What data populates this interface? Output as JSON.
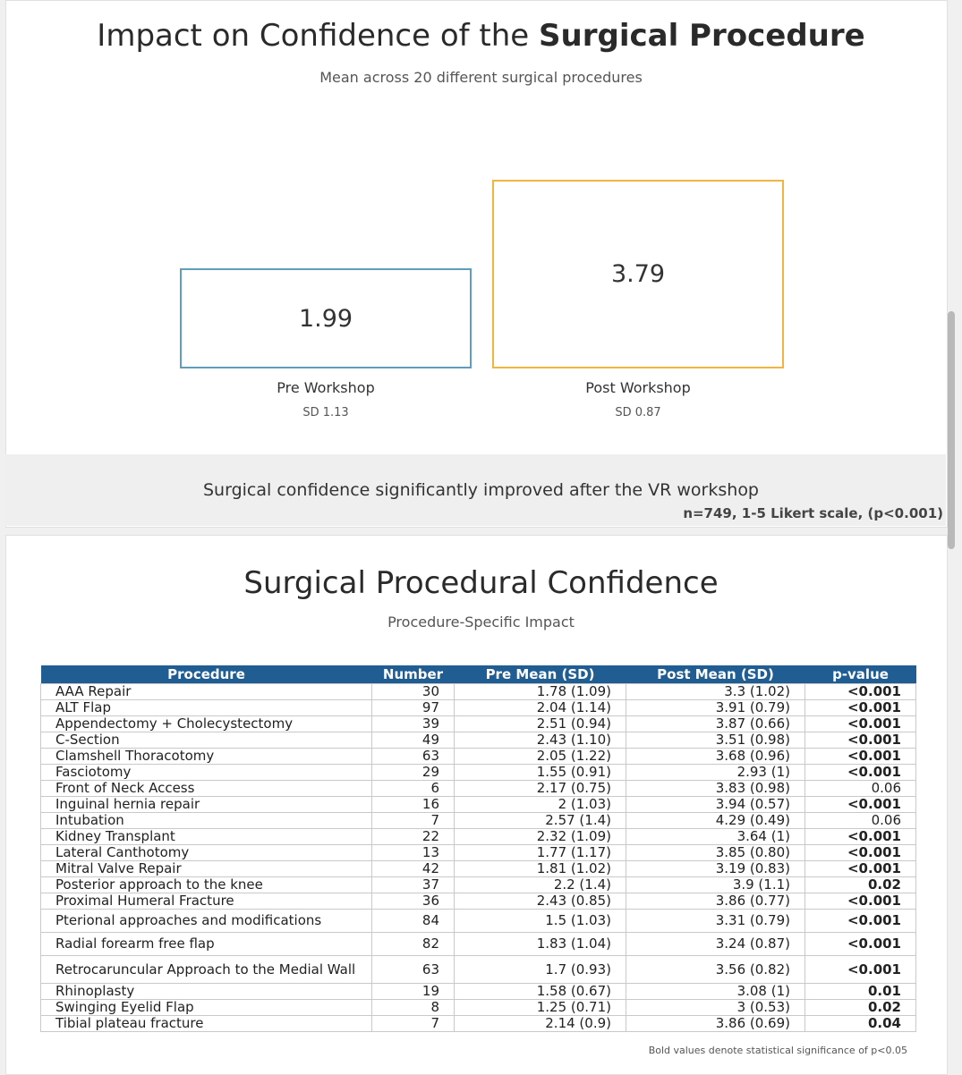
{
  "summary": {
    "title_prefix": "Impact on Confidence of the ",
    "title_bold": "Surgical Procedure",
    "subtitle": "Mean across 20 different surgical procedures",
    "pre": {
      "value": "1.99",
      "label": "Pre Workshop",
      "sd": "SD 1.13",
      "color": "#5f9db9"
    },
    "post": {
      "value": "3.79",
      "label": "Post Workshop",
      "sd": "SD 0.87",
      "color": "#f0b541"
    },
    "conclusion": "Surgical confidence significantly improved after the VR workshop",
    "note": "n=749, 1-5 Likert scale, (p<0.001)"
  },
  "procedures": {
    "title": "Surgical Procedural Confidence",
    "subtitle": "Procedure-Specific Impact",
    "header_color": "#1f5d92",
    "columns": [
      "Procedure",
      "Number",
      "Pre Mean (SD)",
      "Post Mean (SD)",
      "p-value"
    ],
    "rows": [
      {
        "procedure": "AAA Repair",
        "number": "30",
        "pre": "1.78 (1.09)",
        "post": "3.3 (1.02)",
        "p": "<0.001",
        "sig": true
      },
      {
        "procedure": "ALT Flap",
        "number": "97",
        "pre": "2.04 (1.14)",
        "post": "3.91 (0.79)",
        "p": "<0.001",
        "sig": true
      },
      {
        "procedure": "Appendectomy + Cholecystectomy",
        "number": "39",
        "pre": "2.51 (0.94)",
        "post": "3.87 (0.66)",
        "p": "<0.001",
        "sig": true
      },
      {
        "procedure": "C-Section",
        "number": "49",
        "pre": "2.43 (1.10)",
        "post": "3.51 (0.98)",
        "p": "<0.001",
        "sig": true
      },
      {
        "procedure": "Clamshell Thoracotomy",
        "number": "63",
        "pre": "2.05 (1.22)",
        "post": "3.68 (0.96)",
        "p": "<0.001",
        "sig": true
      },
      {
        "procedure": "Fasciotomy",
        "number": "29",
        "pre": "1.55 (0.91)",
        "post": "2.93 (1)",
        "p": "<0.001",
        "sig": true
      },
      {
        "procedure": "Front of Neck Access",
        "number": "6",
        "pre": "2.17 (0.75)",
        "post": "3.83 (0.98)",
        "p": "0.06",
        "sig": false
      },
      {
        "procedure": "Inguinal hernia repair",
        "number": "16",
        "pre": "2 (1.03)",
        "post": "3.94 (0.57)",
        "p": "<0.001",
        "sig": true
      },
      {
        "procedure": "Intubation",
        "number": "7",
        "pre": "2.57 (1.4)",
        "post": "4.29 (0.49)",
        "p": "0.06",
        "sig": false
      },
      {
        "procedure": "Kidney Transplant",
        "number": "22",
        "pre": "2.32 (1.09)",
        "post": "3.64 (1)",
        "p": "<0.001",
        "sig": true
      },
      {
        "procedure": "Lateral Canthotomy",
        "number": "13",
        "pre": "1.77 (1.17)",
        "post": "3.85 (0.80)",
        "p": "<0.001",
        "sig": true
      },
      {
        "procedure": "Mitral Valve Repair",
        "number": "42",
        "pre": "1.81 (1.02)",
        "post": "3.19 (0.83)",
        "p": "<0.001",
        "sig": true
      },
      {
        "procedure": "Posterior approach to the knee",
        "number": "37",
        "pre": "2.2 (1.4)",
        "post": "3.9 (1.1)",
        "p": "0.02",
        "sig": true
      },
      {
        "procedure": "Proximal Humeral Fracture",
        "number": "36",
        "pre": "2.43 (0.85)",
        "post": "3.86 (0.77)",
        "p": "<0.001",
        "sig": true
      },
      {
        "procedure": "Pterional approaches and modifications",
        "number": "84",
        "pre": "1.5 (1.03)",
        "post": "3.31 (0.79)",
        "p": "<0.001",
        "sig": true
      },
      {
        "procedure": "Radial forearm free flap",
        "number": "82",
        "pre": "1.83 (1.04)",
        "post": "3.24 (0.87)",
        "p": "<0.001",
        "sig": true
      },
      {
        "procedure": "Retrocaruncular Approach to the Medial Wall",
        "number": "63",
        "pre": "1.7 (0.93)",
        "post": "3.56 (0.82)",
        "p": "<0.001",
        "sig": true
      },
      {
        "procedure": "Rhinoplasty",
        "number": "19",
        "pre": "1.58 (0.67)",
        "post": "3.08 (1)",
        "p": "0.01",
        "sig": true
      },
      {
        "procedure": "Swinging Eyelid Flap",
        "number": "8",
        "pre": "1.25 (0.71)",
        "post": "3 (0.53)",
        "p": "0.02",
        "sig": true
      },
      {
        "procedure": "Tibial plateau fracture",
        "number": "7",
        "pre": "2.14 (0.9)",
        "post": "3.86 (0.69)",
        "p": "0.04",
        "sig": true
      }
    ],
    "footnote": "Bold values denote statistical significance of p<0.05"
  }
}
